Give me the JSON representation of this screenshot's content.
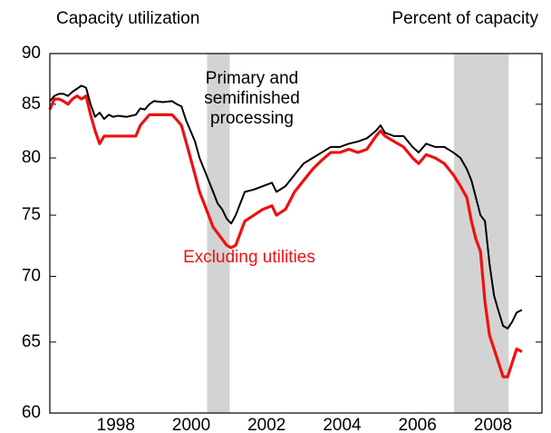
{
  "chart_data": {
    "type": "line",
    "title": "Capacity utilization",
    "subtitle": "Percent of capacity",
    "log_scale": true,
    "xlim": [
      1996.75,
      2009.8
    ],
    "ylim": [
      60,
      90
    ],
    "yticks": [
      60,
      65,
      70,
      75,
      80,
      85,
      90
    ],
    "xticks": [
      {
        "value": 1998.5,
        "label": "1998"
      },
      {
        "value": 2000.5,
        "label": "2000"
      },
      {
        "value": 2002.5,
        "label": "2002"
      },
      {
        "value": 2004.5,
        "label": "2004"
      },
      {
        "value": 2006.5,
        "label": "2006"
      },
      {
        "value": 2008.5,
        "label": "2008"
      }
    ],
    "shaded_periods": [
      [
        2000.92,
        2001.52
      ],
      [
        2007.47,
        2008.92
      ]
    ],
    "shade_color": "#d3d3d3",
    "x": [
      1996.75,
      1996.87,
      1996.99,
      1997.11,
      1997.23,
      1997.35,
      1997.47,
      1997.59,
      1997.71,
      1997.83,
      1997.95,
      1998.07,
      1998.19,
      1998.31,
      1998.43,
      1998.55,
      1998.79,
      1999.03,
      1999.15,
      1999.27,
      1999.39,
      1999.51,
      1999.75,
      1999.99,
      2000.12,
      2000.24,
      2000.36,
      2000.48,
      2000.6,
      2000.72,
      2000.84,
      2000.96,
      2001.08,
      2001.2,
      2001.32,
      2001.44,
      2001.56,
      2001.68,
      2001.8,
      2001.92,
      2002.16,
      2002.4,
      2002.64,
      2002.76,
      2003.0,
      2003.24,
      2003.48,
      2003.72,
      2003.96,
      2004.2,
      2004.44,
      2004.68,
      2004.92,
      2005.16,
      2005.4,
      2005.52,
      2005.64,
      2005.88,
      2006.13,
      2006.37,
      2006.53,
      2006.73,
      2006.97,
      2007.21,
      2007.45,
      2007.64,
      2007.81,
      2007.93,
      2008.05,
      2008.17,
      2008.29,
      2008.41,
      2008.53,
      2008.65,
      2008.77,
      2008.89,
      2009.01,
      2009.13,
      2009.27
    ],
    "series": [
      {
        "name": "Primary and\nsemifinished\nprocessing",
        "color": "#000000",
        "values": [
          85.3,
          85.8,
          86.0,
          86.0,
          85.8,
          86.2,
          86.5,
          86.8,
          86.6,
          85.0,
          83.8,
          84.2,
          83.6,
          84.0,
          83.8,
          83.9,
          83.8,
          84.0,
          84.6,
          84.5,
          85.0,
          85.3,
          85.2,
          85.3,
          85.0,
          84.8,
          83.5,
          82.5,
          81.5,
          80.0,
          79.0,
          78.0,
          77.0,
          76.0,
          75.5,
          74.7,
          74.3,
          75.0,
          76.0,
          77.0,
          77.2,
          77.5,
          77.8,
          77.0,
          77.5,
          78.5,
          79.5,
          80.0,
          80.5,
          81.0,
          81.0,
          81.3,
          81.5,
          81.8,
          82.5,
          83.0,
          82.3,
          82.0,
          82.0,
          81.0,
          80.5,
          81.3,
          81.0,
          81.0,
          80.5,
          80.0,
          79.0,
          78.0,
          76.5,
          75.0,
          74.5,
          71.0,
          68.5,
          67.3,
          66.2,
          66.0,
          66.5,
          67.2,
          67.4
        ]
      },
      {
        "name": "Excluding utilities",
        "color": "#ee1111",
        "values": [
          84.5,
          85.5,
          85.5,
          85.3,
          85.0,
          85.5,
          85.8,
          85.5,
          85.8,
          84.0,
          82.5,
          81.3,
          82.0,
          82.0,
          82.0,
          82.0,
          82.0,
          82.0,
          83.0,
          83.5,
          84.0,
          84.0,
          84.0,
          84.0,
          83.5,
          83.0,
          81.5,
          80.0,
          78.5,
          77.0,
          76.0,
          75.0,
          74.0,
          73.5,
          73.0,
          72.5,
          72.3,
          72.5,
          73.5,
          74.5,
          75.0,
          75.5,
          75.8,
          75.0,
          75.5,
          77.0,
          78.0,
          79.0,
          79.8,
          80.5,
          80.5,
          80.8,
          80.5,
          80.8,
          82.0,
          82.5,
          82.0,
          81.5,
          81.0,
          80.0,
          79.5,
          80.3,
          80.0,
          79.5,
          78.5,
          77.5,
          76.5,
          74.5,
          73.0,
          72.0,
          68.0,
          65.5,
          64.5,
          63.5,
          62.5,
          62.5,
          63.5,
          64.5,
          64.3
        ]
      }
    ]
  }
}
